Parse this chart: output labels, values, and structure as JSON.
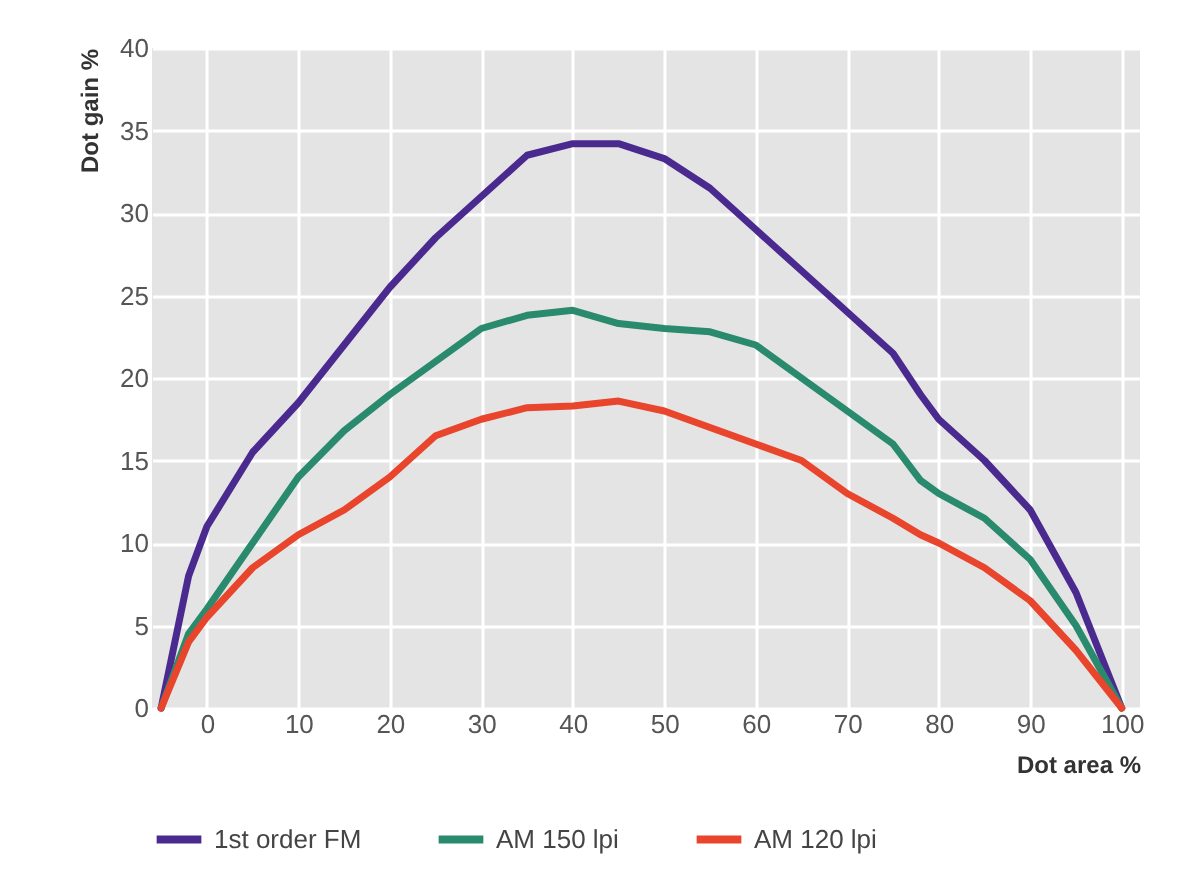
{
  "chart_data": {
    "type": "line",
    "xlabel": "Dot area %",
    "ylabel": "Dot gain %",
    "xlim": [
      -6,
      102
    ],
    "ylim": [
      0,
      40
    ],
    "xticks": [
      0,
      10,
      20,
      30,
      40,
      50,
      60,
      70,
      80,
      90,
      100
    ],
    "yticks": [
      0,
      5,
      10,
      15,
      20,
      25,
      30,
      35,
      40
    ],
    "grid": true,
    "legend": "bottom",
    "marker": "none",
    "line_style": "solid",
    "x": [
      -5,
      -2,
      0,
      5,
      10,
      15,
      20,
      25,
      30,
      35,
      40,
      45,
      50,
      55,
      60,
      65,
      70,
      75,
      78,
      80,
      85,
      90,
      95,
      100
    ],
    "series": [
      {
        "name": "1st order FM",
        "color": "#4b2a8f",
        "values": [
          0,
          8,
          11,
          15.5,
          18.5,
          22,
          25.5,
          28.5,
          31,
          33.5,
          34.2,
          34.2,
          33.3,
          31.5,
          29,
          26.5,
          24,
          21.5,
          19,
          17.5,
          15,
          12,
          7,
          0
        ]
      },
      {
        "name": "AM 150 lpi",
        "color": "#2a8a6e",
        "values": [
          0,
          4.5,
          6,
          10,
          14,
          16.8,
          19,
          21,
          23,
          23.8,
          24.1,
          23.3,
          23,
          22.8,
          22,
          20,
          18,
          16,
          13.8,
          13,
          11.5,
          9,
          5,
          0
        ]
      },
      {
        "name": "AM 120 lpi",
        "color": "#e8452c",
        "values": [
          0,
          4,
          5.5,
          8.5,
          10.5,
          12,
          14,
          16.5,
          17.5,
          18.2,
          18.3,
          18.6,
          18,
          17,
          16,
          15,
          13,
          11.5,
          10.5,
          10,
          8.5,
          6.5,
          3.5,
          0
        ]
      }
    ]
  }
}
